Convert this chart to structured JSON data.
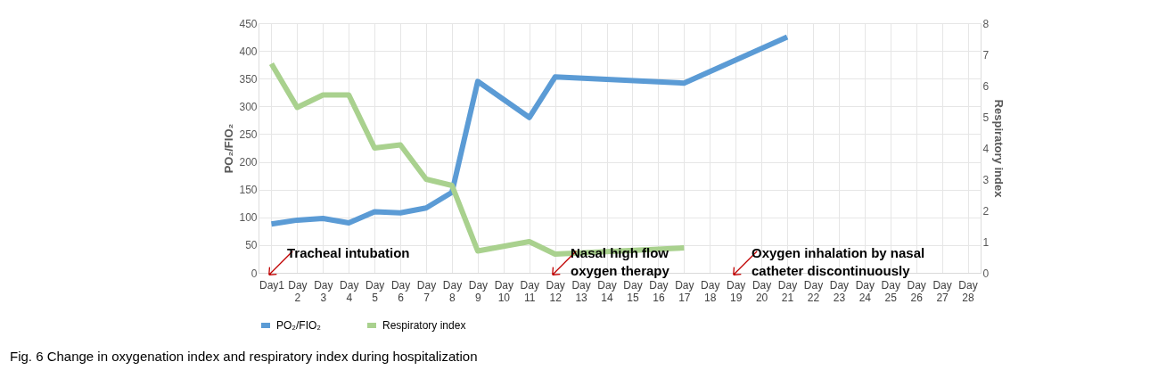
{
  "chart_data": {
    "type": "line",
    "categories": [
      "Day1",
      "Day 2",
      "Day 3",
      "Day 4",
      "Day 5",
      "Day 6",
      "Day 7",
      "Day 8",
      "Day 9",
      "Day 10",
      "Day 11",
      "Day 12",
      "Day 13",
      "Day 14",
      "Day 15",
      "Day 16",
      "Day 17",
      "Day 18",
      "Day 19",
      "Day 20",
      "Day 21",
      "Day 22",
      "Day 23",
      "Day 24",
      "Day 25",
      "Day 26",
      "Day 27",
      "Day 28"
    ],
    "series": [
      {
        "name": "PO₂/FIO₂",
        "color": "#5b9bd5",
        "values": [
          88,
          95,
          98,
          90,
          110,
          108,
          117,
          145,
          345,
          null,
          280,
          353,
          null,
          null,
          null,
          null,
          342,
          null,
          null,
          null,
          425,
          null,
          null,
          null,
          null,
          null,
          null,
          null
        ]
      },
      {
        "name": "Respiratory index",
        "color": "#a9d18e",
        "axis": "y2",
        "values": [
          6.7,
          5.3,
          5.7,
          5.7,
          4.0,
          4.1,
          3.0,
          2.8,
          0.7,
          null,
          1.0,
          0.6,
          null,
          null,
          null,
          null,
          0.8,
          null,
          null,
          null,
          null,
          null,
          null,
          null,
          null,
          null,
          null,
          null
        ]
      }
    ],
    "ylabel": "PO₂/FIO₂",
    "y2label": "Respiratory index",
    "ylim": [
      0,
      450
    ],
    "yticks": [
      0,
      50,
      100,
      150,
      200,
      250,
      300,
      350,
      400,
      450
    ],
    "y2lim": [
      0,
      8
    ],
    "y2ticks": [
      0,
      1,
      2,
      3,
      4,
      5,
      6,
      7,
      8
    ],
    "grid": true,
    "legend": "bottom",
    "line_style": "solid",
    "marker": "none",
    "annotations": [
      "Tracheal intubation",
      "Nasal high flow\noxygen therapy",
      "Oxygen inhalation by nasal\ncatheter discontinuously",
      "Fig. 6 Change in oxygenation index and respiratory index during hospitalization"
    ]
  }
}
